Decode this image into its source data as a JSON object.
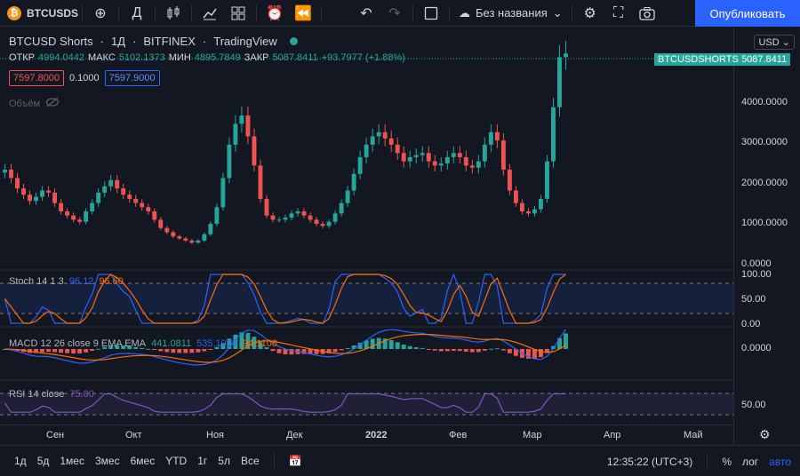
{
  "toolbar": {
    "symbol": "BTCUSDS",
    "interval": "Д",
    "layout_name": "Без названия",
    "publish_label": "Опубликовать"
  },
  "legend": {
    "symbol": "BTCUSD Shorts",
    "interval": "1Д",
    "exchange": "BITFINEX",
    "source": "TradingView",
    "open_label": "ОТКР",
    "open": "4994.0442",
    "high_label": "МАКС",
    "high": "5102.1373",
    "low_label": "МИН",
    "low": "4895.7849",
    "close_label": "ЗАКР",
    "close": "5087.8411",
    "change": "+93.7977 (+1.88%)",
    "bid": "7597.8000",
    "spread": "0.1000",
    "ask": "7597.9000",
    "volume_label": "Объём"
  },
  "price_axis": {
    "currency": "USD",
    "labels": [
      "4000.0000",
      "3000.0000",
      "2000.0000",
      "1000.0000",
      "0.0000"
    ],
    "last_symbol": "BTCUSDSHORTS",
    "last_price": "5087.8411",
    "stoch_labels": [
      "100.00",
      "50.00",
      "0.00"
    ],
    "macd_label": "0.0000",
    "rsi_label": "50.00"
  },
  "indicators": {
    "stoch": {
      "name": "Stoch 14 1 3",
      "k": "96.12",
      "d": "96.60"
    },
    "macd": {
      "name": "MACD 12 26 close 9 EMA EMA",
      "hist": "441.0811",
      "macd": "535.1919",
      "signal": "94.1108"
    },
    "rsi": {
      "name": "RSI 14 close",
      "value": "75.00"
    }
  },
  "time_axis": [
    "Сен",
    "Окт",
    "Ноя",
    "Дек",
    "2022",
    "Фев",
    "Мар",
    "Апр",
    "Май"
  ],
  "bottom": {
    "periods": [
      "1д",
      "5д",
      "1мес",
      "3мес",
      "6мес",
      "YTD",
      "1г",
      "5л",
      "Все"
    ],
    "time": "12:35:22 (UTC+3)",
    "percent": "%",
    "log": "лог",
    "auto": "авто"
  },
  "chart_data": {
    "type": "candlestick",
    "series": [
      {
        "name": "BTCUSD Shorts",
        "values": [
          2300,
          2100,
          1850,
          1700,
          1550,
          1650,
          1800,
          1750,
          1500,
          1300,
          1200,
          1100,
          1050,
          1300,
          1500,
          1750,
          1900,
          2050,
          1850,
          1700,
          1600,
          1500,
          1400,
          1300,
          1100,
          900,
          800,
          700,
          650,
          600,
          550,
          600,
          750,
          1000,
          1400,
          2100,
          2900,
          3400,
          3600,
          3100,
          2400,
          1600,
          1200,
          1100,
          1100,
          1150,
          1250,
          1300,
          1200,
          1100,
          1000,
          950,
          1050,
          1250,
          1500,
          1800,
          2200,
          2600,
          2900,
          3100,
          3200,
          3050,
          2900,
          2700,
          2500,
          2600,
          2650,
          2700,
          2500,
          2400,
          2450,
          2600,
          2700,
          2600,
          2400,
          2350,
          2500,
          2900,
          3200,
          3000,
          2300,
          1800,
          1500,
          1300,
          1250,
          1350,
          1600,
          2500,
          3800,
          5000,
          5087
        ]
      }
    ],
    "ylim": [
      0,
      5200
    ],
    "currency": "USD"
  }
}
